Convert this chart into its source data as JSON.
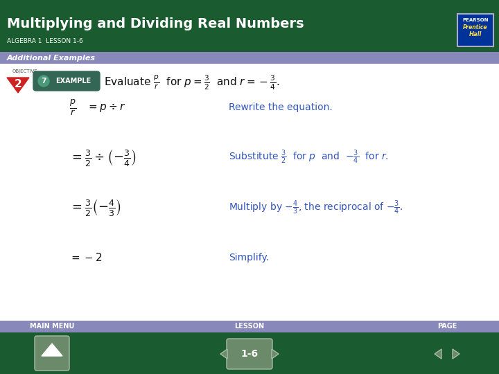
{
  "title": "Multiplying and Dividing Real Numbers",
  "subtitle": "ALGEBRA 1  LESSON 1-6",
  "section": "Additional Examples",
  "header_bg": "#1a5c30",
  "section_bg": "#8888bb",
  "footer_bar_bg": "#8888bb",
  "content_bg": "#ffffff",
  "title_color": "#ffffff",
  "subtitle_color": "#ffffff",
  "section_color": "#ffffff",
  "blue_color": "#3355bb",
  "dark_text": "#111111",
  "example_bg": "#4a7a6a",
  "objective_color": "#cc3322",
  "pearson_bg": "#003399",
  "footer_bg": "#1a5c30",
  "gray_btn": "#6a8a6a"
}
